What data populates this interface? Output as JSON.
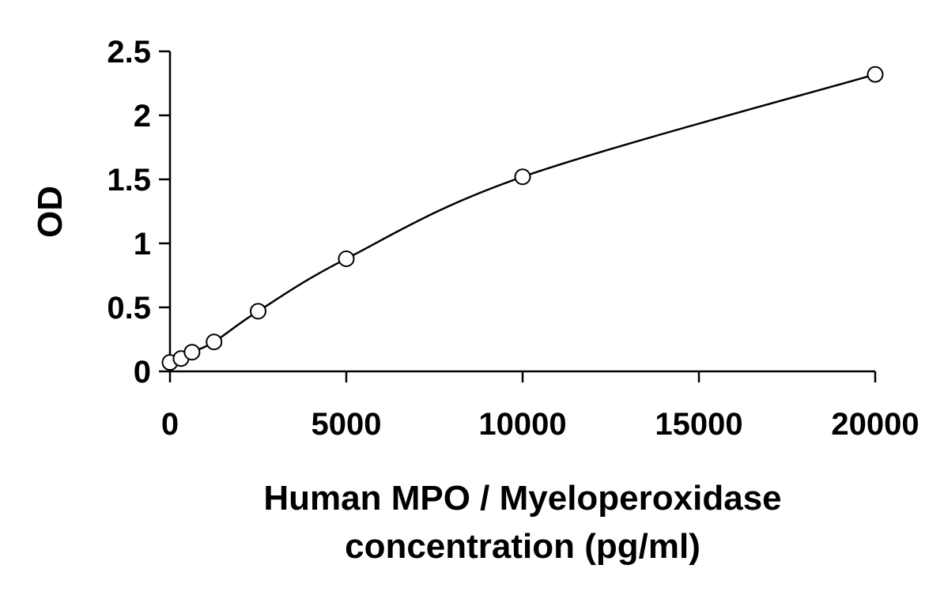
{
  "chart_data": {
    "type": "scatter",
    "title": "",
    "xlabel_lines": [
      "Human MPO / Myeloperoxidase",
      "concentration (pg/ml)"
    ],
    "ylabel": "OD",
    "xlim": [
      0,
      20000
    ],
    "ylim": [
      0,
      2.5
    ],
    "x_ticks": [
      0,
      5000,
      10000,
      15000,
      20000
    ],
    "x_tick_labels": [
      "0",
      "5000",
      "10000",
      "15000",
      "20000"
    ],
    "y_ticks": [
      0,
      0.5,
      1,
      1.5,
      2,
      2.5
    ],
    "y_tick_labels": [
      "0",
      "0.5",
      "1",
      "1.5",
      "2",
      "2.5"
    ],
    "grid": false,
    "legend": "none",
    "marker": "open-circle",
    "fit_curve": "smooth",
    "series": [
      {
        "x": [
          0,
          313,
          625,
          1250,
          2500,
          5000,
          10000,
          20000
        ],
        "y": [
          0.07,
          0.1,
          0.15,
          0.23,
          0.47,
          0.88,
          1.52,
          2.32
        ]
      }
    ],
    "color": "#000000"
  }
}
